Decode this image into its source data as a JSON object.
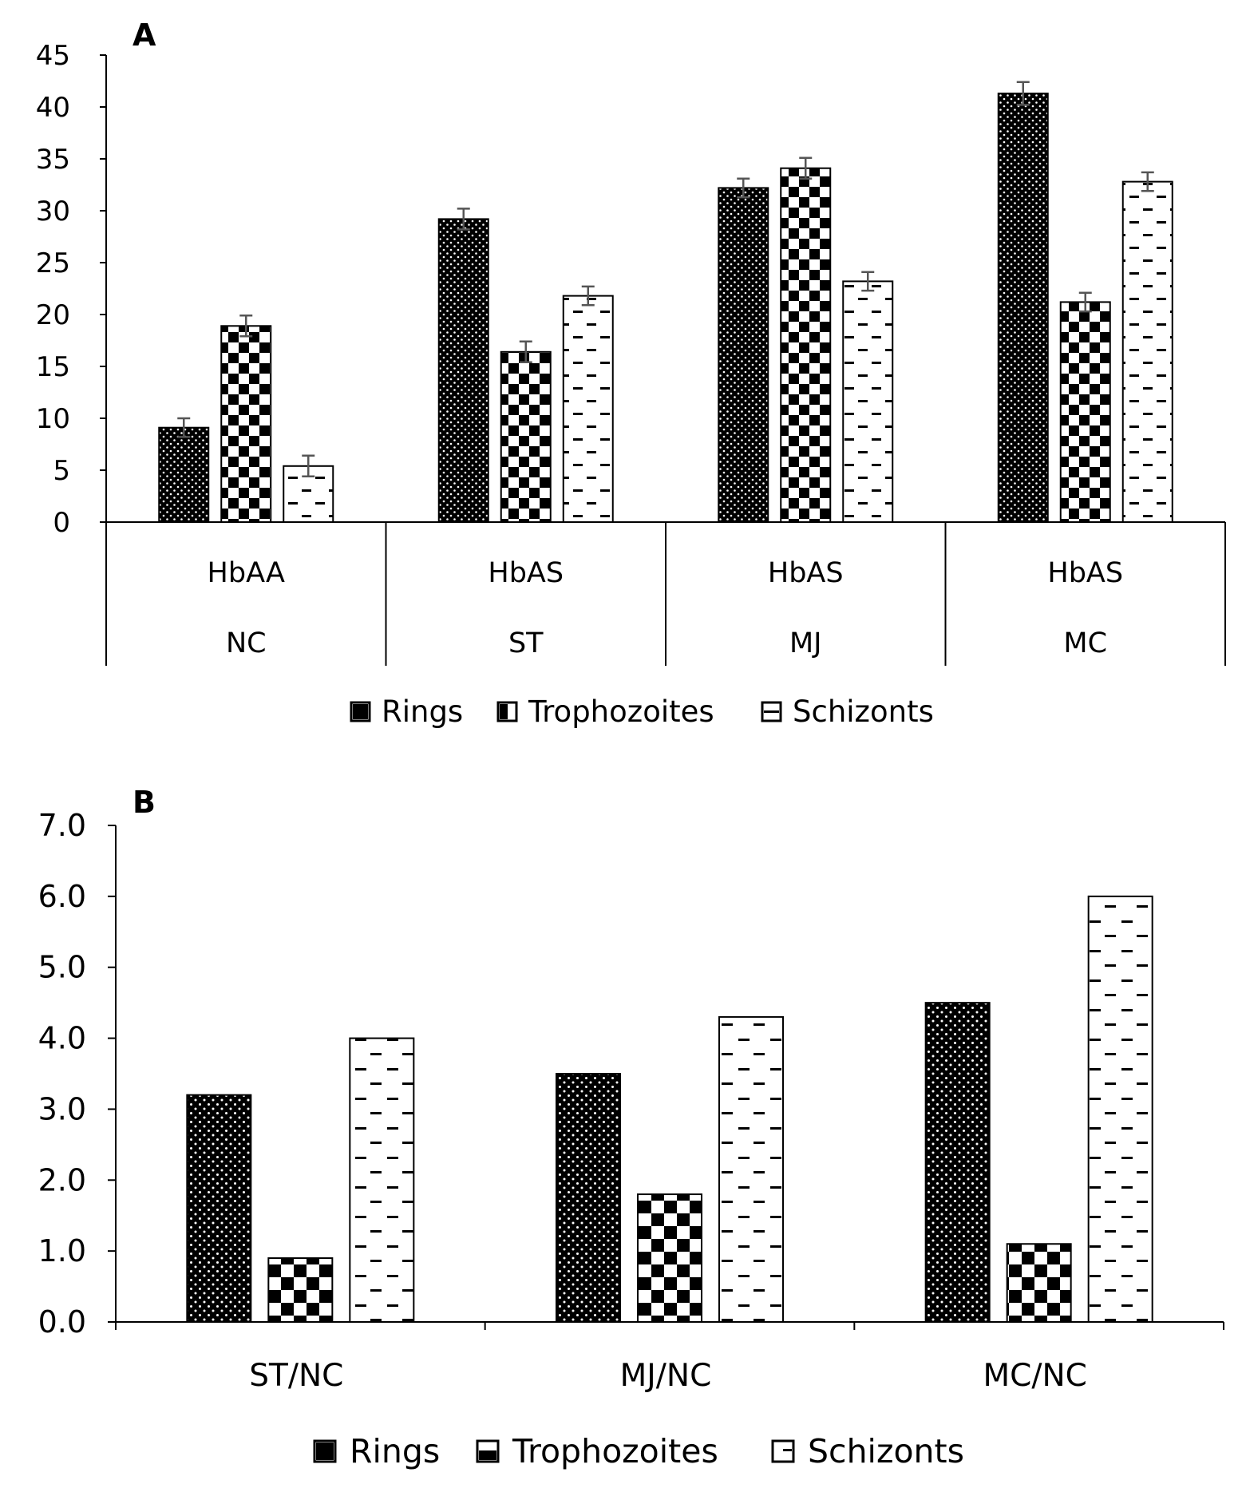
{
  "chart_data": [
    {
      "panel": "A",
      "type": "bar",
      "categories": [
        [
          "HbAA",
          "NC"
        ],
        [
          "HbAS",
          "ST"
        ],
        [
          "HbAS",
          "MJ"
        ],
        [
          "HbAS",
          "MC"
        ]
      ],
      "series": [
        {
          "name": "Rings",
          "pattern": "dots",
          "values": [
            9.1,
            29.2,
            32.2,
            41.3
          ],
          "errors": [
            0.9,
            1.0,
            0.9,
            1.1
          ]
        },
        {
          "name": "Trophozoites",
          "pattern": "checker",
          "values": [
            18.9,
            16.4,
            34.1,
            21.2
          ],
          "errors": [
            1.0,
            1.0,
            1.0,
            0.9
          ]
        },
        {
          "name": "Schizonts",
          "pattern": "dashes",
          "values": [
            5.4,
            21.8,
            23.2,
            32.8
          ],
          "errors": [
            1.0,
            0.9,
            0.9,
            0.9
          ]
        }
      ],
      "ylim": [
        0,
        45
      ],
      "yticks": [
        "0",
        "5",
        "10",
        "15",
        "20",
        "25",
        "30",
        "35",
        "40",
        "45"
      ],
      "legend": "bottom"
    },
    {
      "panel": "B",
      "type": "bar",
      "categories": [
        "ST/NC",
        "MJ/NC",
        "MC/NC"
      ],
      "series": [
        {
          "name": "Rings",
          "pattern": "dots",
          "values": [
            3.2,
            3.5,
            4.5
          ]
        },
        {
          "name": "Trophozoites",
          "pattern": "checker",
          "values": [
            0.9,
            1.8,
            1.1
          ]
        },
        {
          "name": "Schizonts",
          "pattern": "dashes",
          "values": [
            4.0,
            4.3,
            6.0
          ]
        }
      ],
      "ylim": [
        0,
        7
      ],
      "yticks": [
        "0.0",
        "1.0",
        "2.0",
        "3.0",
        "4.0",
        "5.0",
        "6.0",
        "7.0"
      ],
      "legend": "bottom"
    }
  ]
}
